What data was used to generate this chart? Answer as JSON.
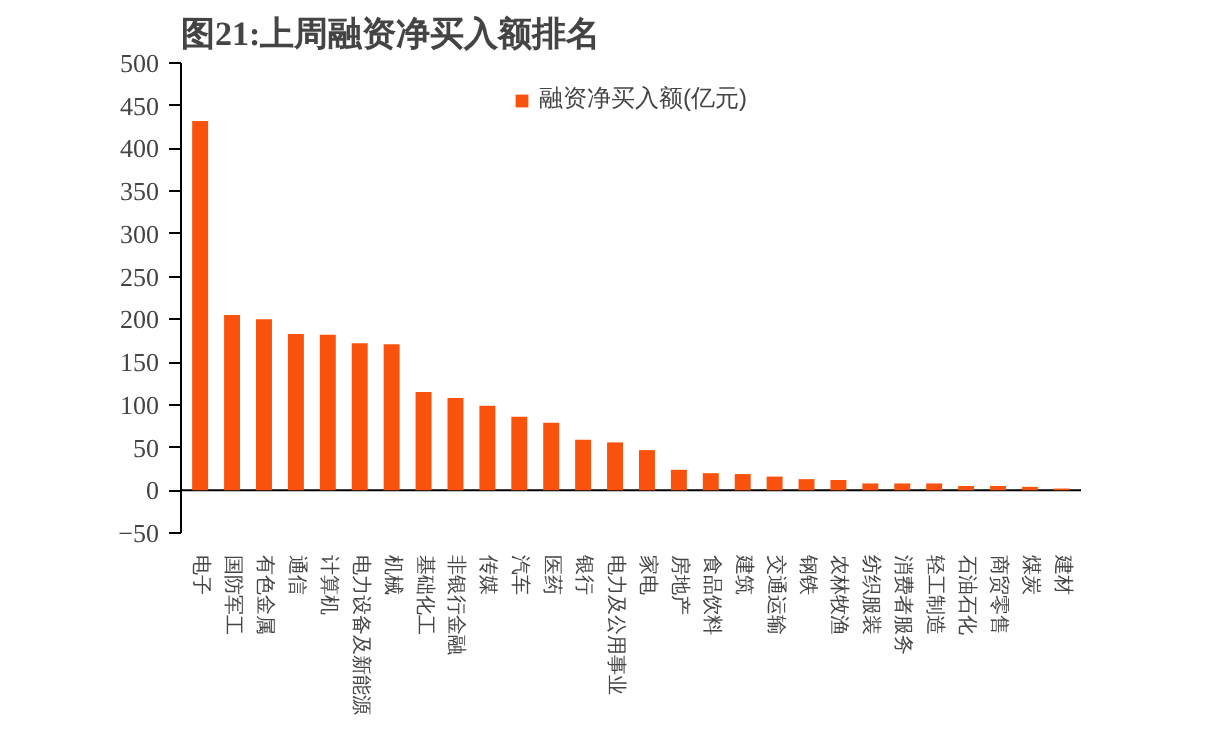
{
  "chart_data": {
    "type": "bar",
    "title": "图21:上周融资净买入额排名",
    "categories": [
      "电子",
      "国防军工",
      "有色金属",
      "通信",
      "计算机",
      "电力设备及新能源",
      "机械",
      "基础化工",
      "非银行金融",
      "传媒",
      "汽车",
      "医药",
      "银行",
      "电力及公用事业",
      "家电",
      "房地产",
      "食品饮料",
      "建筑",
      "交通运输",
      "钢铁",
      "农林牧渔",
      "纺织服装",
      "消费者服务",
      "轻工制造",
      "石油石化",
      "商贸零售",
      "煤炭",
      "建材"
    ],
    "series": [
      {
        "name": "融资净买入额(亿元)",
        "color": "#fa520c",
        "values": [
          432,
          205,
          200,
          183,
          182,
          172,
          171,
          115,
          108,
          99,
          86,
          79,
          59,
          56,
          47,
          24,
          20,
          19,
          16,
          13,
          12,
          8,
          8,
          8,
          5,
          5,
          4,
          2
        ]
      }
    ],
    "ylim": [
      -50,
      500
    ],
    "yticks": [
      -50,
      0,
      50,
      100,
      150,
      200,
      250,
      300,
      350,
      400,
      450,
      500
    ],
    "legend": "top"
  }
}
